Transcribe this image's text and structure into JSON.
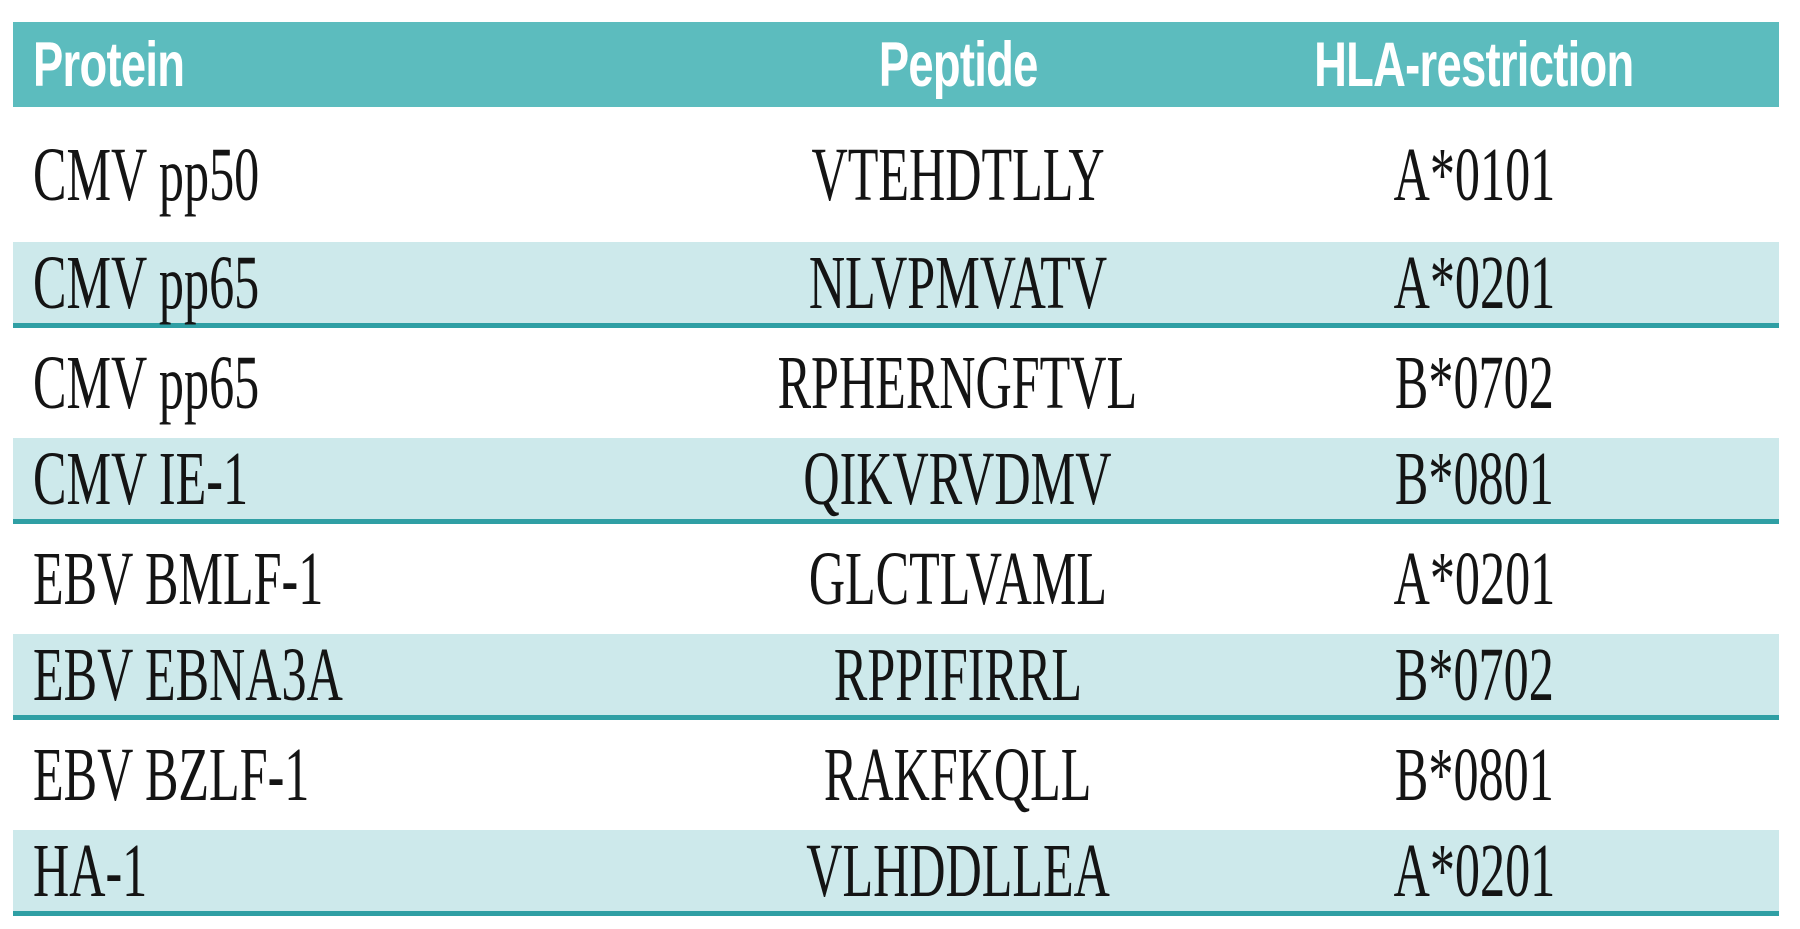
{
  "colors": {
    "header_bg": "#5cbcbe",
    "header_text": "#ffffff",
    "stripe_bg": "#cde9eb",
    "stripe_rule": "#2f9fa4",
    "body_text": "#141414",
    "page_bg": "#ffffff"
  },
  "table": {
    "columns": [
      {
        "label": "Protein"
      },
      {
        "label": "Peptide"
      },
      {
        "label": "HLA-restriction"
      }
    ],
    "rows": [
      {
        "protein": "CMV pp50",
        "peptide": "VTEHDTLLY",
        "hla": "A*0101",
        "shaded": false
      },
      {
        "protein": "CMV pp65",
        "peptide": "NLVPMVATV",
        "hla": "A*0201",
        "shaded": true
      },
      {
        "protein": "CMV pp65",
        "peptide": "RPHERNGFTVL",
        "hla": "B*0702",
        "shaded": false
      },
      {
        "protein": "CMV IE-1",
        "peptide": "QIKVRVDMV",
        "hla": "B*0801",
        "shaded": true
      },
      {
        "protein": "EBV BMLF-1",
        "peptide": "GLCTLVAML",
        "hla": "A*0201",
        "shaded": false
      },
      {
        "protein": "EBV EBNA3A",
        "peptide": "RPPIFIRRL",
        "hla": "B*0702",
        "shaded": true
      },
      {
        "protein": "EBV BZLF-1",
        "peptide": "RAKFKQLL",
        "hla": "B*0801",
        "shaded": false
      },
      {
        "protein": "HA-1",
        "peptide": "VLHDDLLEA",
        "hla": "A*0201",
        "shaded": true
      }
    ]
  },
  "chart_data": {
    "type": "table",
    "title": "",
    "columns": [
      "Protein",
      "Peptide",
      "HLA-restriction"
    ],
    "rows": [
      [
        "CMV pp50",
        "VTEHDTLLY",
        "A*0101"
      ],
      [
        "CMV pp65",
        "NLVPMVATV",
        "A*0201"
      ],
      [
        "CMV pp65",
        "RPHERNGFTVL",
        "B*0702"
      ],
      [
        "CMV IE-1",
        "QIKVRVDMV",
        "B*0801"
      ],
      [
        "EBV BMLF-1",
        "GLCTLVAML",
        "A*0201"
      ],
      [
        "EBV EBNA3A",
        "RPPIFIRRL",
        "B*0702"
      ],
      [
        "EBV BZLF-1",
        "RAKFKQLL",
        "B*0801"
      ],
      [
        "HA-1",
        "VLHDDLLEA",
        "A*0201"
      ]
    ],
    "layout_hints": {
      "header_style": "teal band, bold white condensed sans",
      "zebra": "even rows pale teal with dark teal bottom rule",
      "alignment": [
        "left",
        "center",
        "center"
      ]
    }
  }
}
